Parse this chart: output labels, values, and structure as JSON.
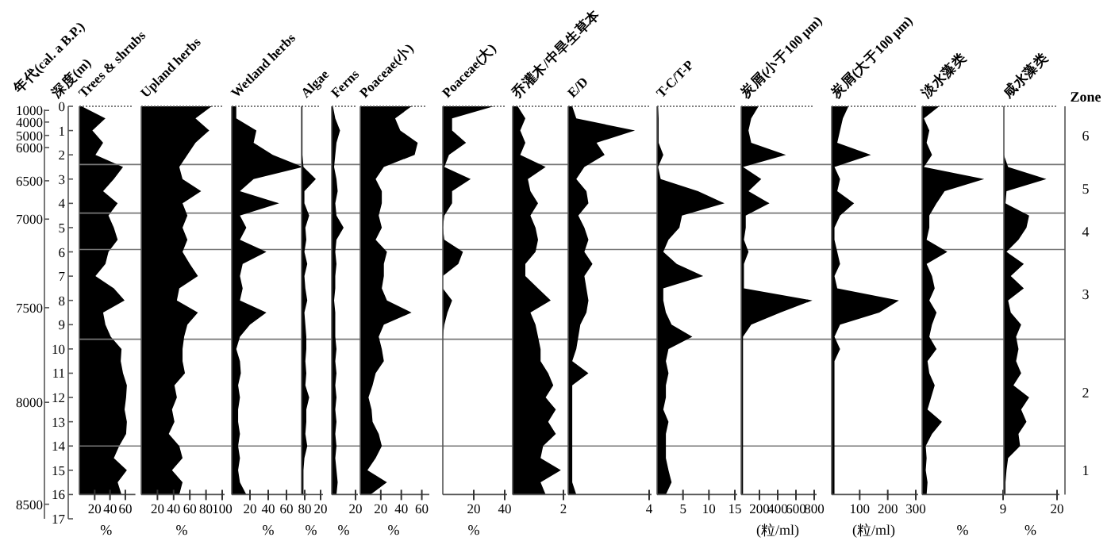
{
  "chart_data": [
    {
      "type": "area",
      "title": "Trees & shrubs",
      "xlabel": "%",
      "ylabel": "深度(m)",
      "y2label": "年代(cal. a B.P.)",
      "orientation": "horizontal",
      "color": "#000000",
      "xlim": [
        0,
        70
      ],
      "xticks": [
        20,
        40,
        60
      ],
      "ylim": [
        17,
        0
      ],
      "yticks": [
        0,
        1,
        2,
        3,
        4,
        5,
        6,
        7,
        8,
        9,
        10,
        11,
        12,
        13,
        14,
        15,
        16,
        17
      ],
      "annotations": [
        "Zone",
        "6",
        "5",
        "4",
        "3",
        "2",
        "1",
        "1000",
        "4000",
        "5000",
        "6000",
        "6500",
        "7000",
        "7500",
        "8000",
        "8500"
      ],
      "ref_lines": [
        {
          "axis": "y",
          "value": 2.4
        },
        {
          "axis": "y",
          "value": 4.4
        },
        {
          "axis": "y",
          "value": 5.9
        },
        {
          "axis": "y",
          "value": 9.6
        },
        {
          "axis": "y",
          "value": 14.0
        }
      ],
      "x": [
        0,
        0.5,
        1,
        1.5,
        2,
        2.5,
        3,
        3.5,
        4,
        4.5,
        5,
        5.5,
        6,
        6.5,
        7,
        7.5,
        8,
        8.5,
        9,
        9.5,
        10,
        10.5,
        11,
        11.5,
        12,
        12.5,
        13,
        13.5,
        14,
        14.5,
        15,
        15.5,
        16
      ],
      "values": [
        3,
        34,
        17,
        31,
        21,
        57,
        45,
        31,
        50,
        38,
        45,
        50,
        38,
        34,
        21,
        45,
        59,
        31,
        34,
        41,
        55,
        54,
        57,
        62,
        61,
        59,
        62,
        61,
        52,
        45,
        62,
        50,
        55
      ]
    },
    {
      "type": "area",
      "title": "Upland herbs",
      "xlabel": "%",
      "orientation": "horizontal",
      "color": "#000000",
      "xlim": [
        0,
        100
      ],
      "xticks": [
        20,
        40,
        60,
        80,
        100
      ],
      "ylim": [
        17,
        0
      ],
      "tick_labels": "x",
      "x": [
        0,
        0.5,
        1,
        1.5,
        2,
        2.5,
        3,
        3.5,
        4,
        4.5,
        5,
        5.5,
        6,
        6.5,
        7,
        7.5,
        8,
        8.5,
        9,
        9.5,
        10,
        10.5,
        11,
        11.5,
        12,
        12.5,
        13,
        13.5,
        14,
        14.5,
        15,
        15.5,
        16
      ],
      "values": [
        87,
        67,
        84,
        67,
        57,
        47,
        51,
        74,
        51,
        57,
        51,
        57,
        51,
        60,
        70,
        47,
        44,
        70,
        57,
        53,
        51,
        51,
        54,
        41,
        44,
        38,
        41,
        34,
        47,
        51,
        38,
        51,
        47
      ]
    },
    {
      "type": "area",
      "title": "Wetland herbs",
      "xlabel": "%",
      "orientation": "horizontal",
      "color": "#000000",
      "xlim": [
        0,
        80
      ],
      "xticks": [
        20,
        40,
        60,
        80
      ],
      "ylim": [
        17,
        0
      ],
      "tick_labels": "x",
      "x": [
        0,
        0.5,
        1,
        1.5,
        2,
        2.5,
        3,
        3.5,
        4,
        4.5,
        5,
        5.5,
        6,
        6.5,
        7,
        7.5,
        8,
        8.5,
        9,
        9.5,
        10,
        10.5,
        11,
        11.5,
        12,
        12.5,
        13,
        13.5,
        14,
        14.5,
        15,
        15.5,
        16
      ],
      "values": [
        5,
        5,
        27,
        24,
        45,
        78,
        24,
        9,
        52,
        9,
        16,
        9,
        38,
        12,
        9,
        12,
        9,
        38,
        20,
        9,
        5,
        9,
        10,
        7,
        9,
        7,
        7,
        9,
        7,
        9,
        7,
        9,
        16
      ]
    },
    {
      "type": "area",
      "title": "Algae",
      "xlabel": "%",
      "orientation": "horizontal",
      "color": "#000000",
      "xlim": [
        0,
        20
      ],
      "xticks": [
        20
      ],
      "ylim": [
        17,
        0
      ],
      "tick_labels": "x",
      "x": [
        0,
        0.5,
        1,
        1.5,
        2,
        2.5,
        3,
        3.5,
        4,
        4.5,
        5,
        5.5,
        6,
        6.5,
        7,
        7.5,
        8,
        8.5,
        9,
        9.5,
        10,
        10.5,
        11,
        11.5,
        12,
        12.5,
        13,
        13.5,
        14,
        14.5,
        15,
        15.5,
        16
      ],
      "values": [
        1,
        1,
        1,
        1,
        1,
        2,
        15,
        3,
        3,
        8,
        4,
        5,
        3,
        6,
        3,
        4,
        6,
        3,
        4,
        5,
        5,
        4,
        5,
        4,
        8,
        5,
        5,
        4,
        6,
        3,
        2,
        2,
        2
      ]
    },
    {
      "type": "area",
      "title": "Ferns",
      "xlabel": "%",
      "orientation": "horizontal",
      "color": "#000000",
      "xlim": [
        0,
        20
      ],
      "xticks": [
        20
      ],
      "ylim": [
        17,
        0
      ],
      "tick_labels": "x",
      "x": [
        0,
        0.5,
        1,
        1.5,
        2,
        2.5,
        3,
        3.5,
        4,
        4.5,
        5,
        5.5,
        6,
        6.5,
        7,
        7.5,
        8,
        8.5,
        9,
        9.5,
        10,
        10.5,
        11,
        11.5,
        12,
        12.5,
        13,
        13.5,
        14,
        14.5,
        15,
        15.5,
        16
      ],
      "values": [
        1,
        3,
        7,
        4,
        3,
        2,
        4,
        5,
        3,
        4,
        10,
        4,
        3,
        4,
        3,
        3,
        2,
        3,
        3,
        3,
        4,
        3,
        4,
        3,
        4,
        3,
        4,
        3,
        4,
        3,
        4,
        5,
        4
      ]
    },
    {
      "type": "area",
      "title": "Poaceae(小)",
      "xlabel": "%",
      "orientation": "horizontal",
      "color": "#000000",
      "xlim": [
        0,
        65
      ],
      "xticks": [
        20,
        40,
        60
      ],
      "ylim": [
        17,
        0
      ],
      "tick_labels": "x",
      "x": [
        0,
        0.5,
        1,
        1.5,
        2,
        2.5,
        3,
        3.5,
        4,
        4.5,
        5,
        5.5,
        6,
        6.5,
        7,
        7.5,
        8,
        8.5,
        9,
        9.5,
        10,
        10.5,
        11,
        11.5,
        12,
        12.5,
        13,
        13.5,
        14,
        14.5,
        15,
        15.5,
        16
      ],
      "values": [
        50,
        34,
        39,
        56,
        53,
        23,
        15,
        21,
        21,
        18,
        21,
        15,
        26,
        23,
        23,
        21,
        26,
        50,
        23,
        18,
        21,
        23,
        15,
        12,
        8,
        11,
        12,
        18,
        21,
        15,
        7,
        26,
        10
      ]
    },
    {
      "type": "area",
      "title": "Poaceae(大)",
      "xlabel": "%",
      "orientation": "horizontal",
      "color": "#000000",
      "xlim": [
        0,
        40
      ],
      "xticks": [
        20,
        40
      ],
      "ylim": [
        17,
        0
      ],
      "tick_labels": "x",
      "x": [
        0,
        0.5,
        1,
        1.5,
        2,
        2.5,
        3,
        3.5,
        4,
        4.5,
        5,
        5.5,
        6,
        6.5,
        7,
        7.5,
        8,
        8.5,
        9,
        9.5,
        10,
        10.5,
        11,
        11.5,
        12,
        12.5,
        13,
        13.5,
        14,
        14.5,
        15,
        15.5,
        16
      ],
      "values": [
        33,
        6,
        6,
        15,
        4,
        1,
        18,
        6,
        6,
        1,
        0,
        1,
        13,
        10,
        0,
        0,
        6,
        3,
        1,
        0,
        0,
        0,
        0,
        0,
        0,
        0,
        0,
        0,
        0,
        0,
        0,
        0,
        0
      ]
    },
    {
      "type": "area",
      "title": "乔灌木/中旱生草本",
      "orientation": "horizontal",
      "color": "#000000",
      "xlim": [
        0,
        2
      ],
      "xticks": [
        2
      ],
      "ylim": [
        17,
        0
      ],
      "tick_labels": "x",
      "x": [
        0,
        0.5,
        1,
        1.5,
        2,
        2.5,
        3,
        3.5,
        4,
        4.5,
        5,
        5.5,
        6,
        6.5,
        7,
        7.5,
        8,
        8.5,
        9,
        9.5,
        10,
        10.5,
        11,
        11.5,
        12,
        12.5,
        13,
        13.5,
        14,
        14.5,
        15,
        15.5,
        16
      ],
      "values": [
        0.2,
        0.5,
        0.3,
        0.5,
        0.3,
        1.3,
        0.6,
        0.7,
        1.0,
        0.7,
        0.9,
        1.0,
        0.9,
        0.5,
        0.5,
        1.0,
        1.5,
        0.7,
        0.9,
        1.0,
        1.1,
        1.1,
        1.4,
        1.6,
        1.3,
        1.7,
        1.4,
        1.7,
        1.2,
        1.1,
        1.9,
        1.1,
        1.3
      ]
    },
    {
      "type": "area",
      "title": "E/D",
      "orientation": "horizontal",
      "color": "#000000",
      "xlim": [
        0,
        4
      ],
      "xticks": [
        4
      ],
      "ylim": [
        17,
        0
      ],
      "tick_labels": "x",
      "x": [
        0,
        0.5,
        1,
        1.5,
        2,
        2.5,
        3,
        3.5,
        4,
        4.5,
        5,
        5.5,
        6,
        6.5,
        7,
        7.5,
        8,
        8.5,
        9,
        9.5,
        10,
        10.5,
        11,
        11.5,
        12,
        12.5,
        13,
        13.5,
        14,
        14.5,
        15,
        15.5,
        16
      ],
      "values": [
        0.2,
        0.4,
        3.3,
        1.4,
        1.8,
        0.8,
        0.4,
        0.9,
        1.0,
        0.5,
        0.8,
        1.0,
        0.8,
        1.2,
        0.8,
        0.9,
        1.0,
        0.9,
        0.6,
        0.5,
        0.4,
        0.2,
        1.0,
        0.2,
        0.2,
        0.2,
        0.2,
        0.2,
        0.2,
        0.2,
        0.2,
        0.2,
        0.4
      ]
    },
    {
      "type": "area",
      "title": "T-C/T-P",
      "orientation": "horizontal",
      "color": "#000000",
      "xlim": [
        0,
        15
      ],
      "xticks": [
        5,
        10,
        15
      ],
      "ylim": [
        17,
        0
      ],
      "tick_labels": "x",
      "x": [
        0,
        0.5,
        1,
        1.5,
        2,
        2.5,
        3,
        3.5,
        4,
        4.5,
        5,
        5.5,
        6,
        6.5,
        7,
        7.5,
        8,
        8.5,
        9,
        9.5,
        10,
        10.5,
        11,
        11.5,
        12,
        12.5,
        13,
        13.5,
        14,
        14.5,
        15,
        15.5,
        16
      ],
      "values": [
        0.2,
        0.3,
        0.3,
        0.3,
        1.2,
        0.2,
        0.7,
        7.9,
        13,
        4.8,
        4.3,
        2.2,
        1.2,
        3.8,
        8.9,
        1.2,
        1.2,
        1.7,
        2.8,
        6.8,
        2.2,
        1.7,
        2.2,
        1.7,
        1.7,
        1.2,
        2.2,
        1.7,
        1.7,
        1.7,
        2.2,
        2.8,
        1.7
      ]
    },
    {
      "type": "area",
      "title": "炭屑(小于100 μm)",
      "xlabel": "(粒/ml)",
      "orientation": "horizontal",
      "color": "#000000",
      "xlim": [
        0,
        800
      ],
      "xticks": [
        200,
        400,
        600,
        800
      ],
      "ylim": [
        17,
        0
      ],
      "tick_labels": "x",
      "x": [
        0,
        0.5,
        1,
        1.5,
        2,
        2.5,
        3,
        3.5,
        4,
        4.5,
        5,
        5.5,
        6,
        6.5,
        7,
        7.5,
        8,
        8.5,
        9,
        9.5,
        10,
        10.5,
        11,
        11.5,
        12,
        12.5,
        13,
        13.5,
        14,
        14.5,
        15,
        15.5,
        16
      ],
      "values": [
        190,
        110,
        80,
        110,
        490,
        20,
        220,
        80,
        310,
        50,
        50,
        30,
        80,
        30,
        30,
        30,
        780,
        430,
        110,
        20,
        20,
        20,
        20,
        20,
        20,
        20,
        20,
        20,
        20,
        20,
        20,
        20,
        20
      ]
    },
    {
      "type": "area",
      "title": "炭屑(大于100 μm)",
      "xlabel": "(粒/ml)",
      "orientation": "horizontal",
      "color": "#000000",
      "xlim": [
        0,
        300
      ],
      "xticks": [
        100,
        200,
        300
      ],
      "ylim": [
        17,
        0
      ],
      "tick_labels": "x",
      "x": [
        0,
        0.5,
        1,
        1.5,
        2,
        2.5,
        3,
        3.5,
        4,
        4.5,
        5,
        5.5,
        6,
        6.5,
        7,
        7.5,
        8,
        8.5,
        9,
        9.5,
        10,
        10.5,
        11,
        11.5,
        12,
        12.5,
        13,
        13.5,
        14,
        14.5,
        15,
        15.5,
        16
      ],
      "values": [
        60,
        40,
        30,
        20,
        140,
        10,
        30,
        20,
        80,
        30,
        10,
        10,
        20,
        30,
        10,
        20,
        240,
        170,
        30,
        10,
        30,
        10,
        10,
        10,
        10,
        10,
        10,
        10,
        10,
        10,
        10,
        10,
        10
      ]
    },
    {
      "type": "area",
      "title": "淡水藻类",
      "xlabel": "%",
      "orientation": "horizontal",
      "color": "#000000",
      "xlim": [
        0,
        9
      ],
      "xticks": [
        9
      ],
      "ylim": [
        17,
        0
      ],
      "tick_labels": "x",
      "x": [
        0,
        0.5,
        1,
        1.5,
        2,
        2.5,
        3,
        3.5,
        4,
        4.5,
        5,
        5.5,
        6,
        6.5,
        7,
        7.5,
        8,
        8.5,
        9,
        9.5,
        10,
        10.5,
        11,
        11.5,
        12,
        12.5,
        13,
        13.5,
        14,
        14.5,
        15,
        15.5,
        16
      ],
      "values": [
        1.9,
        0.2,
        0.8,
        0.5,
        1.1,
        0.2,
        6.9,
        2.5,
        1.6,
        0.8,
        0.8,
        0.5,
        2.8,
        0.5,
        1.1,
        1.4,
        0.8,
        1.6,
        1.1,
        0.8,
        1.6,
        0.6,
        0.8,
        1.4,
        1.0,
        0.6,
        2.2,
        1.1,
        0.4,
        0.5,
        0.4,
        0.6,
        0.5
      ]
    },
    {
      "type": "area",
      "title": "咸水藻类",
      "xlabel": "%",
      "orientation": "horizontal",
      "color": "#000000",
      "xlim": [
        0,
        20
      ],
      "xticks": [
        20
      ],
      "ylim": [
        17,
        0
      ],
      "tick_labels": "x",
      "x": [
        0,
        0.5,
        1,
        1.5,
        2,
        2.5,
        3,
        3.5,
        4,
        4.5,
        5,
        5.5,
        6,
        6.5,
        7,
        7.5,
        8,
        8.5,
        9,
        9.5,
        10,
        10.5,
        11,
        11.5,
        12,
        12.5,
        13,
        13.5,
        14,
        14.5,
        15,
        15.5,
        16
      ],
      "values": [
        0,
        0,
        0,
        0,
        0,
        1.6,
        16,
        1,
        0.6,
        9.5,
        8.5,
        5.5,
        1,
        7.5,
        2.6,
        7.5,
        1.6,
        2.6,
        6.5,
        4.6,
        5.5,
        4.6,
        6.5,
        3.6,
        9.5,
        6.5,
        8.5,
        5.5,
        6.1,
        1.6,
        1,
        0.6,
        0.6
      ]
    }
  ]
}
